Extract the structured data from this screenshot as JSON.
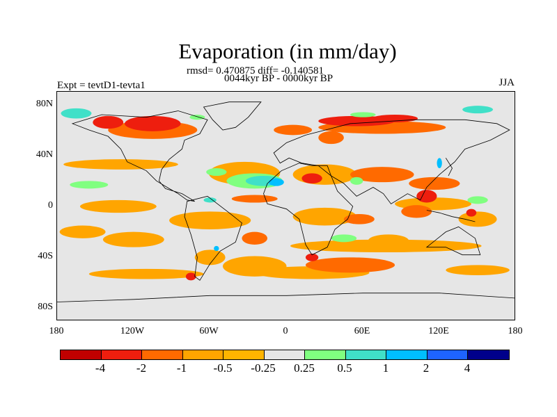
{
  "title": "Evaporation (in mm/day)",
  "stats_line": "rmsd= 0.470875 diff= -0.140581",
  "period_line": "0044kyr BP - 0000kyr BP",
  "experiment_label": "Expt = tevtD1-tevta1",
  "season_label": "JJA",
  "y_axis": {
    "ticks": [
      "80N",
      "40N",
      "0",
      "40S",
      "80S"
    ]
  },
  "x_axis": {
    "ticks": [
      "180",
      "120W",
      "60W",
      "0",
      "60E",
      "120E",
      "180"
    ]
  },
  "colorbar": {
    "colors": [
      "#8b0000",
      "#c00000",
      "#ee1e0e",
      "#ff6a00",
      "#ffa500",
      "#ffb400",
      "#e6e6e6",
      "#80ff80",
      "#40e0c8",
      "#00bfff",
      "#1e64ff",
      "#00008b"
    ],
    "labels": [
      "-4",
      "-2",
      "-1",
      "-0.5",
      "-0.25",
      "0.25",
      "0.5",
      "1",
      "2",
      "4"
    ]
  },
  "field_colors": {
    "background": "#e6e6e6",
    "strong_negative": "#ee1e0e",
    "negative": "#ff6a00",
    "weak_negative": "#ffa500",
    "weak_positive": "#80ff80",
    "positive": "#40e0c8",
    "strong_positive": "#00bfff",
    "coast": "#000000"
  }
}
